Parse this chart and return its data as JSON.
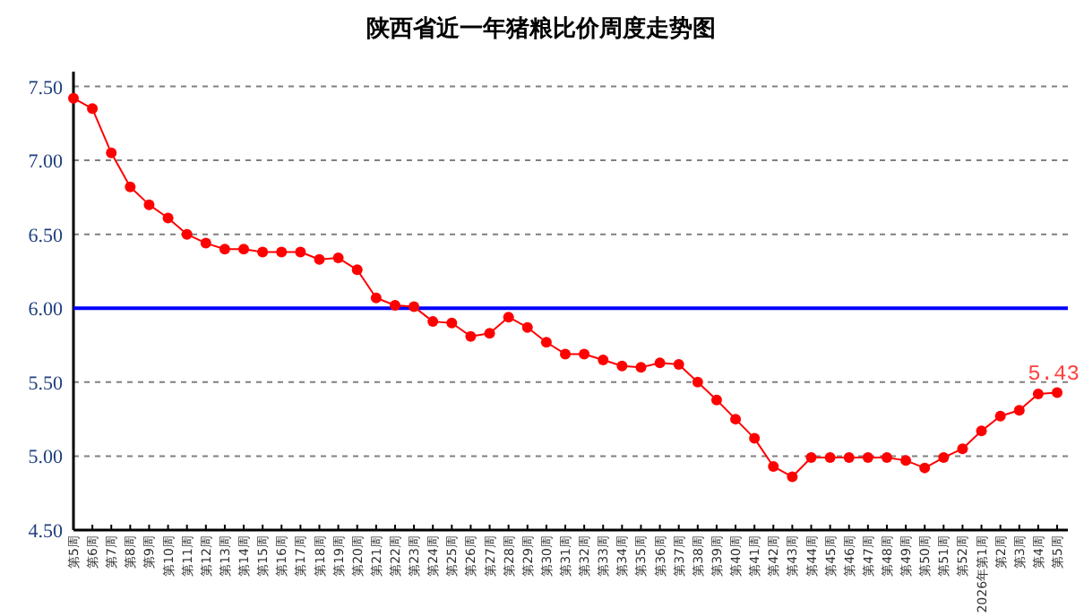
{
  "chart_data": {
    "type": "line",
    "title": "陕西省近一年猪粮比价周度走势图",
    "categories": [
      "第5周",
      "第6周",
      "第7周",
      "第8周",
      "第9周",
      "第10周",
      "第11周",
      "第12周",
      "第13周",
      "第14周",
      "第15周",
      "第16周",
      "第17周",
      "第18周",
      "第19周",
      "第20周",
      "第21周",
      "第22周",
      "第23周",
      "第24周",
      "第25周",
      "第26周",
      "第27周",
      "第28周",
      "第29周",
      "第30周",
      "第31周",
      "第32周",
      "第33周",
      "第34周",
      "第35周",
      "第36周",
      "第37周",
      "第38周",
      "第39周",
      "第40周",
      "第41周",
      "第42周",
      "第43周",
      "第44周",
      "第45周",
      "第46周",
      "第47周",
      "第48周",
      "第49周",
      "第50周",
      "第51周",
      "第52周",
      "2026年第1周",
      "第2周",
      "第3周",
      "第4周",
      "第5周"
    ],
    "series": [
      {
        "color": "#ff0000",
        "values": [
          7.42,
          7.35,
          7.05,
          6.82,
          6.7,
          6.61,
          6.5,
          6.44,
          6.4,
          6.4,
          6.38,
          6.38,
          6.38,
          6.33,
          6.34,
          6.26,
          6.07,
          6.02,
          6.01,
          5.91,
          5.9,
          5.81,
          5.83,
          5.94,
          5.87,
          5.77,
          5.69,
          5.69,
          5.65,
          5.61,
          5.6,
          5.63,
          5.62,
          5.5,
          5.38,
          5.25,
          5.12,
          4.93,
          4.86,
          4.99,
          4.99,
          4.99,
          4.99,
          4.99,
          4.97,
          4.92,
          4.99,
          5.05,
          5.17,
          5.27,
          5.31,
          5.42,
          5.43
        ],
        "value_labels": [
          null,
          null,
          null,
          null,
          null,
          null,
          null,
          null,
          null,
          null,
          null,
          null,
          null,
          null,
          null,
          null,
          null,
          null,
          null,
          null,
          null,
          null,
          null,
          null,
          null,
          null,
          null,
          null,
          null,
          null,
          null,
          null,
          null,
          null,
          null,
          null,
          null,
          null,
          null,
          null,
          null,
          null,
          null,
          null,
          null,
          null,
          null,
          null,
          null,
          null,
          null,
          null,
          "5.43"
        ]
      }
    ],
    "ylim": [
      4.5,
      7.6
    ],
    "yticks": [
      {
        "value": 4.5,
        "label": "4.50"
      },
      {
        "value": 5,
        "label": "5.00"
      },
      {
        "value": 5.5,
        "label": "5.50"
      },
      {
        "value": 6,
        "label": "6.00"
      },
      {
        "value": 6.5,
        "label": "6.50"
      },
      {
        "value": 7,
        "label": "7.00"
      },
      {
        "value": 7.5,
        "label": "7.50"
      }
    ],
    "ref_lines": [
      {
        "axis": "y",
        "value": 6,
        "color": "#0000ff"
      }
    ],
    "grid": "y",
    "marker": "circle",
    "line_style": "solid"
  }
}
